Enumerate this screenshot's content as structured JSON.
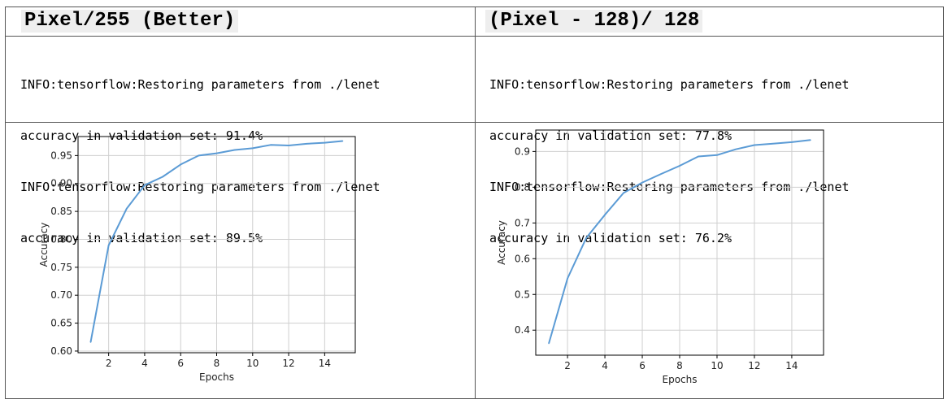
{
  "panels": [
    {
      "title": "Pixel/255 (Better)",
      "log": [
        "INFO:tensorflow:Restoring parameters from ./lenet",
        "accuracy in validation set: 91.4%",
        "INFO:tensorflow:Restoring parameters from ./lenet",
        "accuracy in validation set: 89.5%"
      ]
    },
    {
      "title": "(Pixel - 128)/ 128",
      "log": [
        "INFO:tensorflow:Restoring parameters from ./lenet",
        "accuracy in validation set: 77.8%",
        "INFO:tensorflow:Restoring parameters from ./lenet",
        "accuracy in validation set: 76.2%"
      ]
    }
  ],
  "colors": {
    "line": "#5b9bd5",
    "grid": "#cfcfcf",
    "axis": "#000000"
  },
  "chart_data": [
    {
      "type": "line",
      "xlabel": "Epochs",
      "ylabel": "Accuracy",
      "xlim": [
        0.3,
        15.7
      ],
      "ylim": [
        0.597,
        0.984
      ],
      "xticks": [
        2,
        4,
        6,
        8,
        10,
        12,
        14
      ],
      "yticks": [
        0.6,
        0.65,
        0.7,
        0.75,
        0.8,
        0.85,
        0.9,
        0.95
      ],
      "yticklabels": [
        "0.60",
        "0.65",
        "0.70",
        "0.75",
        "0.80",
        "0.85",
        "0.90",
        "0.95"
      ],
      "grid": true,
      "x": [
        1,
        2,
        3,
        4,
        5,
        6,
        7,
        8,
        9,
        10,
        11,
        12,
        13,
        14,
        15
      ],
      "y": [
        0.616,
        0.789,
        0.855,
        0.897,
        0.912,
        0.934,
        0.95,
        0.954,
        0.96,
        0.963,
        0.969,
        0.968,
        0.971,
        0.973,
        0.976
      ]
    },
    {
      "type": "line",
      "xlabel": "Epochs",
      "ylabel": "Accuracy",
      "xlim": [
        0.3,
        15.7
      ],
      "ylim": [
        0.33,
        0.96
      ],
      "xticks": [
        2,
        4,
        6,
        8,
        10,
        12,
        14
      ],
      "yticks": [
        0.4,
        0.5,
        0.6,
        0.7,
        0.8,
        0.9
      ],
      "yticklabels": [
        "0.4",
        "0.5",
        "0.6",
        "0.7",
        "0.8",
        "0.9"
      ],
      "grid": true,
      "x": [
        1,
        2,
        3,
        4,
        5,
        6,
        7,
        8,
        9,
        10,
        11,
        12,
        13,
        14,
        15
      ],
      "y": [
        0.363,
        0.545,
        0.658,
        0.723,
        0.784,
        0.813,
        0.837,
        0.86,
        0.886,
        0.89,
        0.906,
        0.918,
        0.922,
        0.926,
        0.932
      ]
    }
  ]
}
